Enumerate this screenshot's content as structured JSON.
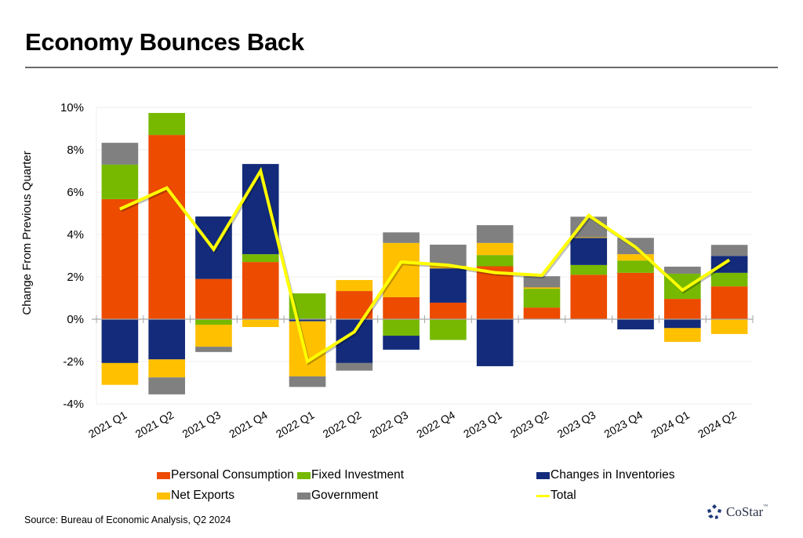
{
  "page": {
    "title": "Economy Bounces Back",
    "source": "Source: Bureau of Economic Analysis, Q2 2024",
    "logo_text": "CoStar",
    "logo_tm": "™",
    "logo_icon": "costar-star-icon"
  },
  "chart_data": {
    "type": "bar",
    "stacked": true,
    "title": "Economy Bounces Back",
    "xlabel": "",
    "ylabel": "Change From Previous Quarter",
    "ylim": [
      -4,
      10
    ],
    "yticks": [
      -4,
      -2,
      0,
      2,
      4,
      6,
      8,
      10
    ],
    "ytick_labels": [
      "-4%",
      "-2%",
      "0%",
      "2%",
      "4%",
      "6%",
      "8%",
      "10%"
    ],
    "grid": true,
    "legend_position": "bottom",
    "categories": [
      "2021 Q1",
      "2021 Q2",
      "2021 Q3",
      "2021 Q4",
      "2022 Q1",
      "2022 Q2",
      "2022 Q3",
      "2022 Q4",
      "2023 Q1",
      "2023 Q2",
      "2023 Q3",
      "2023 Q4",
      "2024 Q1",
      "2024 Q2"
    ],
    "series": [
      {
        "name": "Personal Consumption",
        "color": "#ec4b00",
        "kind": "bar",
        "values": [
          5.67,
          8.7,
          1.9,
          2.7,
          0.0,
          1.33,
          1.04,
          0.78,
          2.5,
          0.55,
          2.1,
          2.19,
          0.96,
          1.55
        ]
      },
      {
        "name": "Fixed Investment",
        "color": "#76b900",
        "kind": "bar",
        "values": [
          1.63,
          1.04,
          -0.26,
          0.37,
          1.22,
          0.0,
          -0.78,
          -0.98,
          0.53,
          0.89,
          0.46,
          0.58,
          1.19,
          0.64
        ]
      },
      {
        "name": "Changes in Inventories",
        "color": "#132b7a",
        "kind": "bar",
        "values": [
          -2.07,
          -1.9,
          2.95,
          4.26,
          -0.1,
          -2.07,
          -0.66,
          1.62,
          -2.22,
          0.0,
          1.28,
          -0.48,
          -0.42,
          0.8
        ]
      },
      {
        "name": "Net Exports",
        "color": "#ffc000",
        "kind": "bar",
        "values": [
          -1.03,
          -0.85,
          -1.04,
          -0.37,
          -2.6,
          0.52,
          2.56,
          0.12,
          0.57,
          0.06,
          0.03,
          0.3,
          -0.65,
          -0.7
        ]
      },
      {
        "name": "Government",
        "color": "#808080",
        "kind": "bar",
        "values": [
          1.03,
          -0.8,
          -0.25,
          0.0,
          -0.5,
          -0.36,
          0.5,
          1.0,
          0.84,
          0.53,
          0.97,
          0.77,
          0.33,
          0.52
        ]
      },
      {
        "name": "Total",
        "color": "#ffff00",
        "kind": "line",
        "values": [
          5.2,
          6.2,
          3.3,
          7.0,
          -2.0,
          -0.6,
          2.7,
          2.55,
          2.2,
          2.07,
          4.9,
          3.4,
          1.37,
          2.8
        ]
      }
    ]
  },
  "legend": {
    "items": [
      {
        "label": "Personal Consumption",
        "color": "#ec4b00",
        "kind": "swatch"
      },
      {
        "label": "Fixed Investment",
        "color": "#76b900",
        "kind": "swatch"
      },
      {
        "label": "Changes in Inventories",
        "color": "#132b7a",
        "kind": "swatch"
      },
      {
        "label": "Net Exports",
        "color": "#ffc000",
        "kind": "swatch"
      },
      {
        "label": "Government",
        "color": "#808080",
        "kind": "swatch"
      },
      {
        "label": "Total",
        "color": "#ffff00",
        "kind": "line"
      }
    ]
  }
}
